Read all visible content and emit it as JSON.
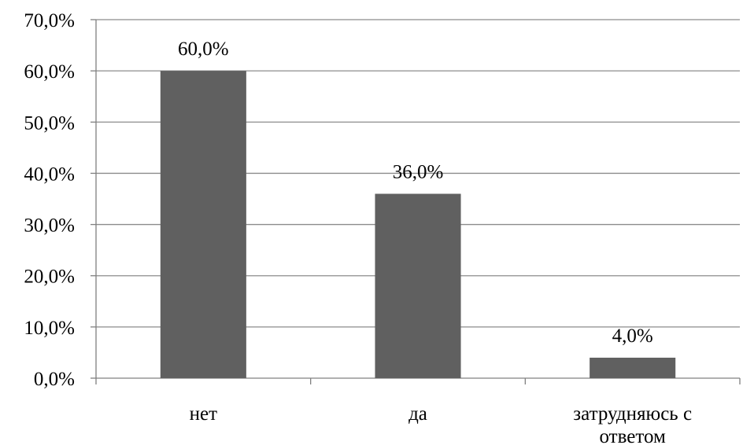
{
  "chart_data": {
    "type": "bar",
    "categories": [
      "нет",
      "да",
      "затрудняюсь с ответом"
    ],
    "category_label_lines": [
      [
        "нет"
      ],
      [
        "да"
      ],
      [
        "затрудняюсь с",
        "ответом"
      ]
    ],
    "values": [
      60.0,
      36.0,
      4.0
    ],
    "data_labels": [
      "60,0%",
      "36,0%",
      "4,0%"
    ],
    "ylim": [
      0,
      70
    ],
    "yticks": [
      0,
      10,
      20,
      30,
      40,
      50,
      60,
      70
    ],
    "ytick_labels": [
      "0,0%",
      "10,0%",
      "20,0%",
      "30,0%",
      "40,0%",
      "50,0%",
      "60,0%",
      "70,0%"
    ],
    "grid": true,
    "title": "",
    "xlabel": "",
    "ylabel": "",
    "colors": {
      "bar": "#606060",
      "grid": "#8c8c8c",
      "axis": "#808080",
      "text": "#000000"
    }
  }
}
